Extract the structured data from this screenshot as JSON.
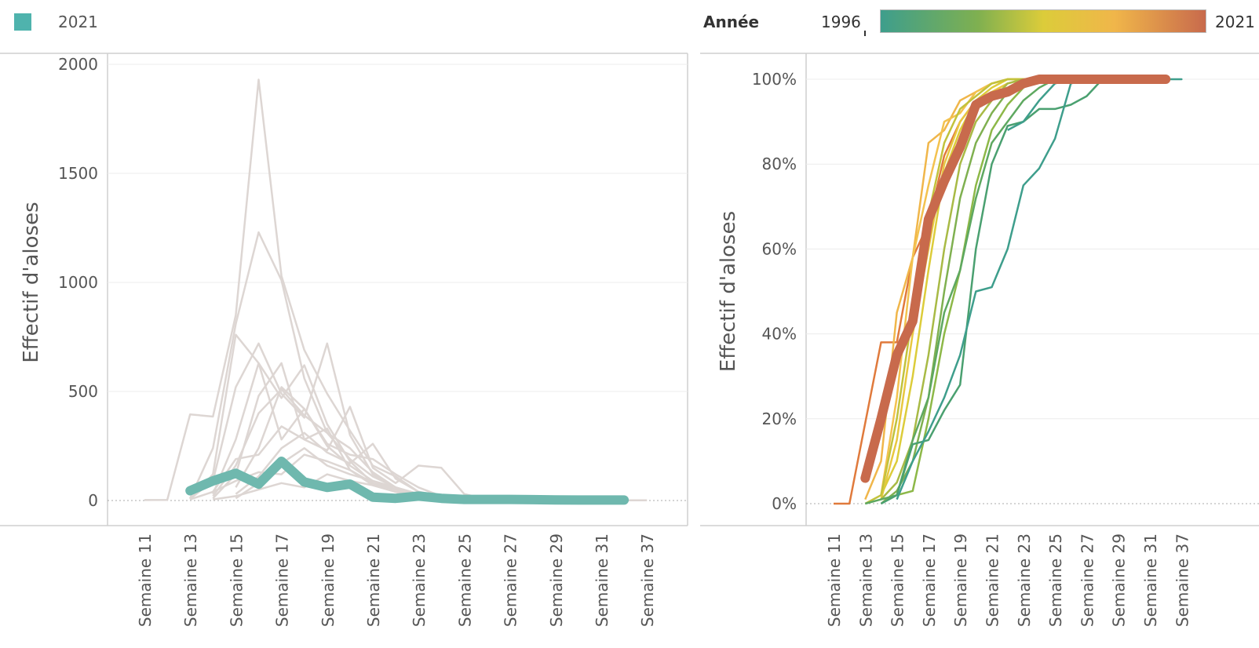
{
  "legend": {
    "year_label": "2021",
    "swatch_color": "#4fb3ad"
  },
  "color_legend": {
    "title": "Année",
    "min_label": "1996",
    "max_label": "2021",
    "colors": [
      "#3e9e8c",
      "#7fb050",
      "#dccc3a",
      "#f0b64a",
      "#c86a4c"
    ]
  },
  "chart_data": [
    {
      "type": "line",
      "title": "",
      "ylabel": "Effectif d'aloses",
      "xlabel": "",
      "ylim": [
        0,
        2000
      ],
      "y_ticks": [
        "0",
        "500",
        "1000",
        "1500",
        "2000"
      ],
      "categories": [
        "Semaine 11",
        "Semaine 13",
        "Semaine 15",
        "Semaine 17",
        "Semaine 19",
        "Semaine 21",
        "Semaine 23",
        "Semaine 25",
        "Semaine 27",
        "Semaine 29",
        "Semaine 31",
        "Semaine 37"
      ],
      "highlight_color": "#6fb8ae",
      "background_color": "#ddd6d3",
      "highlight_series": {
        "name": "2021",
        "x": [
          13,
          14,
          15,
          16,
          17,
          18,
          19,
          20,
          21,
          22,
          23,
          24,
          25,
          26,
          27,
          28,
          29,
          30,
          31,
          32
        ],
        "values": [
          45,
          90,
          125,
          75,
          180,
          85,
          60,
          75,
          15,
          10,
          20,
          10,
          5,
          5,
          5,
          4,
          3,
          2,
          2,
          2
        ]
      },
      "background_series": [
        {
          "x": [
            11,
            12,
            13,
            14,
            15,
            16,
            17,
            18,
            19,
            20,
            21,
            22,
            23,
            24,
            25
          ],
          "values": [
            2,
            3,
            395,
            385,
            850,
            1930,
            1030,
            690,
            490,
            320,
            160,
            110,
            40,
            20,
            5
          ]
        },
        {
          "x": [
            13,
            14,
            15,
            16,
            17,
            18,
            19,
            20,
            21,
            22,
            23,
            24,
            25
          ],
          "values": [
            10,
            240,
            810,
            1230,
            1010,
            560,
            310,
            190,
            110,
            60,
            20,
            10,
            5
          ]
        },
        {
          "x": [
            13,
            14,
            15,
            16,
            17,
            18,
            19,
            20,
            21,
            22,
            23,
            24,
            25
          ],
          "values": [
            5,
            120,
            760,
            630,
            470,
            620,
            350,
            180,
            80,
            40,
            10,
            5,
            2
          ]
        },
        {
          "x": [
            13,
            14,
            15,
            16,
            17,
            18,
            19,
            20,
            21,
            22,
            23,
            24,
            25
          ],
          "values": [
            8,
            90,
            520,
            720,
            490,
            380,
            720,
            300,
            120,
            60,
            30,
            10,
            3
          ]
        },
        {
          "x": [
            14,
            15,
            16,
            17,
            18,
            19,
            20,
            21,
            22,
            23,
            24,
            25
          ],
          "values": [
            30,
            280,
            630,
            280,
            420,
            250,
            160,
            90,
            50,
            20,
            10,
            3
          ]
        },
        {
          "x": [
            14,
            15,
            16,
            17,
            18,
            19,
            20,
            21,
            22,
            23,
            24,
            25
          ],
          "values": [
            20,
            160,
            400,
            510,
            390,
            310,
            240,
            130,
            60,
            25,
            10,
            2
          ]
        },
        {
          "x": [
            14,
            15,
            16,
            17,
            18,
            19,
            20,
            21,
            22,
            23,
            24,
            25,
            26
          ],
          "values": [
            10,
            120,
            480,
            630,
            280,
            230,
            430,
            150,
            80,
            160,
            150,
            30,
            5
          ]
        },
        {
          "x": [
            15,
            16,
            17,
            18,
            19,
            20,
            21,
            22,
            23,
            24,
            25
          ],
          "values": [
            60,
            240,
            520,
            420,
            260,
            210,
            190,
            120,
            60,
            20,
            5
          ]
        },
        {
          "x": [
            14,
            15,
            16,
            17,
            18,
            19,
            20,
            21,
            22,
            23,
            24,
            25
          ],
          "values": [
            40,
            190,
            210,
            340,
            280,
            330,
            140,
            70,
            40,
            10,
            4,
            2
          ]
        },
        {
          "x": [
            15,
            16,
            17,
            18,
            19,
            20,
            21,
            22,
            23,
            24,
            25
          ],
          "values": [
            30,
            110,
            240,
            310,
            220,
            170,
            260,
            100,
            40,
            20,
            5
          ]
        },
        {
          "x": [
            15,
            16,
            17,
            18,
            19,
            20,
            21,
            22,
            23,
            24
          ],
          "values": [
            10,
            80,
            170,
            240,
            160,
            120,
            90,
            60,
            30,
            5
          ]
        },
        {
          "x": [
            13,
            14,
            15,
            16,
            17,
            18,
            19,
            20,
            21,
            22,
            23,
            24,
            25
          ],
          "values": [
            5,
            40,
            90,
            130,
            120,
            210,
            180,
            140,
            80,
            50,
            20,
            10,
            3
          ]
        },
        {
          "x": [
            14,
            15,
            16,
            17,
            18,
            19,
            20,
            21,
            22,
            23,
            24,
            25,
            26,
            27,
            28,
            29,
            30,
            31,
            32,
            33
          ],
          "values": [
            5,
            20,
            50,
            80,
            60,
            120,
            90,
            70,
            40,
            30,
            20,
            10,
            5,
            3,
            2,
            2,
            1,
            1,
            1,
            1
          ]
        }
      ]
    },
    {
      "type": "line",
      "title": "",
      "ylabel": "Effectif d'aloses",
      "xlabel": "",
      "ylim": [
        0,
        1
      ],
      "y_ticks": [
        "0%",
        "20%",
        "40%",
        "60%",
        "80%",
        "100%"
      ],
      "categories": [
        "Semaine 11",
        "Semaine 13",
        "Semaine 15",
        "Semaine 17",
        "Semaine 19",
        "Semaine 21",
        "Semaine 23",
        "Semaine 25",
        "Semaine 27",
        "Semaine 29",
        "Semaine 31",
        "Semaine 37"
      ],
      "highlight_series": {
        "name": "2021",
        "color": "#c86a4c",
        "x": [
          13,
          14,
          15,
          16,
          17,
          18,
          19,
          20,
          21,
          22,
          23,
          24,
          25,
          26,
          27,
          28,
          29,
          30,
          31,
          32
        ],
        "values": [
          0.06,
          0.2,
          0.35,
          0.43,
          0.67,
          0.76,
          0.84,
          0.94,
          0.96,
          0.97,
          0.99,
          1.0,
          1.0,
          1.0,
          1.0,
          1.0,
          1.0,
          1.0,
          1.0,
          1.0
        ]
      },
      "background_series": [
        {
          "color": "#e07a3c",
          "x": [
            11,
            12,
            13,
            14,
            15,
            16,
            17,
            18,
            19,
            20,
            21,
            22,
            23,
            24,
            25
          ],
          "values": [
            0,
            0,
            0.19,
            0.38,
            0.38,
            0.58,
            0.66,
            0.82,
            0.9,
            0.95,
            0.97,
            0.98,
            1.0,
            1.0,
            1.0
          ]
        },
        {
          "color": "#f0b64a",
          "x": [
            13,
            14,
            15,
            16,
            17,
            18,
            19,
            20,
            21,
            22,
            23,
            24
          ],
          "values": [
            0.01,
            0.1,
            0.45,
            0.58,
            0.85,
            0.88,
            0.95,
            0.97,
            0.99,
            1.0,
            1.0,
            1.0
          ]
        },
        {
          "color": "#f3c24f",
          "x": [
            14,
            15,
            16,
            17,
            18,
            19,
            20,
            21,
            22,
            23
          ],
          "values": [
            0.02,
            0.25,
            0.58,
            0.75,
            0.9,
            0.92,
            0.97,
            0.99,
            1.0,
            1.0
          ]
        },
        {
          "color": "#e8c840",
          "x": [
            14,
            15,
            16,
            17,
            18,
            19,
            20,
            21,
            22,
            23,
            24
          ],
          "values": [
            0.01,
            0.15,
            0.4,
            0.6,
            0.8,
            0.9,
            0.95,
            0.97,
            0.99,
            1.0,
            1.0
          ]
        },
        {
          "color": "#dccc3a",
          "x": [
            14,
            15,
            16,
            17,
            18,
            19,
            20,
            21,
            22,
            23
          ],
          "values": [
            0.02,
            0.1,
            0.3,
            0.55,
            0.78,
            0.88,
            0.95,
            0.98,
            1.0,
            1.0
          ]
        },
        {
          "color": "#c2c23c",
          "x": [
            13,
            14,
            15,
            16,
            17,
            18,
            19,
            20,
            21,
            22,
            23
          ],
          "values": [
            0,
            0.02,
            0.2,
            0.45,
            0.68,
            0.85,
            0.93,
            0.96,
            0.99,
            1.0,
            1.0
          ]
        },
        {
          "color": "#a8ba45",
          "x": [
            14,
            15,
            16,
            17,
            18,
            19,
            20,
            21,
            22,
            23
          ],
          "values": [
            0.01,
            0.05,
            0.15,
            0.35,
            0.6,
            0.8,
            0.9,
            0.95,
            0.99,
            1.0
          ]
        },
        {
          "color": "#7fb050",
          "x": [
            14,
            15,
            16,
            17,
            18,
            19,
            20,
            21,
            22,
            23,
            24
          ],
          "values": [
            0,
            0.03,
            0.1,
            0.25,
            0.5,
            0.72,
            0.85,
            0.92,
            0.97,
            0.99,
            1.0
          ]
        },
        {
          "color": "#8db848",
          "x": [
            15,
            16,
            17,
            18,
            19,
            20,
            21,
            22,
            23,
            24
          ],
          "values": [
            0.02,
            0.03,
            0.2,
            0.4,
            0.55,
            0.75,
            0.88,
            0.94,
            0.98,
            1.0
          ]
        },
        {
          "color": "#5ea860",
          "x": [
            13,
            14,
            15,
            16,
            17,
            18,
            19,
            20,
            21,
            22,
            23,
            24,
            25,
            26
          ],
          "values": [
            0,
            0.01,
            0.02,
            0.15,
            0.25,
            0.45,
            0.55,
            0.72,
            0.85,
            0.9,
            0.95,
            0.98,
            1.0,
            1.0
          ]
        },
        {
          "color": "#4aa070",
          "x": [
            14,
            15,
            16,
            17,
            18,
            19,
            20,
            21,
            22,
            23,
            24,
            25,
            26,
            27,
            28,
            29
          ],
          "values": [
            0,
            0.02,
            0.14,
            0.15,
            0.22,
            0.28,
            0.6,
            0.8,
            0.89,
            0.9,
            0.93,
            0.93,
            0.94,
            0.96,
            1.0,
            1.0
          ]
        },
        {
          "color": "#3e9e8c",
          "x": [
            15,
            16,
            17,
            18,
            19,
            20,
            21,
            22,
            23,
            24,
            25,
            26,
            27
          ],
          "values": [
            0.01,
            0.1,
            0.17,
            0.25,
            0.35,
            0.5,
            0.51,
            0.6,
            0.75,
            0.79,
            0.86,
            0.99,
            1.0
          ]
        },
        {
          "color": "#3e9e8c",
          "x": [
            22,
            23,
            24,
            25,
            26,
            27,
            28,
            29,
            30,
            31,
            32,
            33,
            34
          ],
          "values": [
            0.88,
            0.9,
            0.95,
            0.99,
            1.0,
            1.0,
            1.0,
            1.0,
            1.0,
            1.0,
            1.0,
            1.0,
            1.0
          ]
        }
      ]
    }
  ]
}
